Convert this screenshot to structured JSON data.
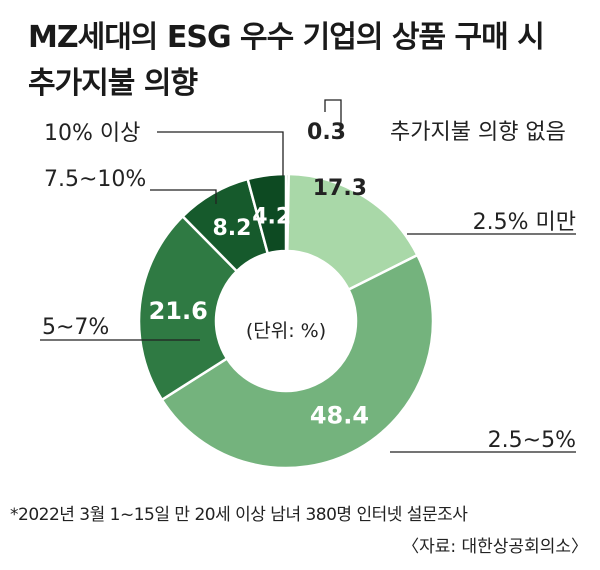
{
  "title_lines": [
    "MZ세대의 ESG 우수 기업의 상품 구매 시",
    "추가지불 의향"
  ],
  "unit_label": "(단위: %)",
  "note": "*2022년 3월 1~15일 만 20세 이상 남녀 380명 인터넷 설문조사",
  "source": "〈자료: 대한상공회의소〉",
  "chart_data": {
    "type": "pie",
    "donut": true,
    "unit": "%",
    "slices": [
      {
        "category": "추가지불 의향 없음",
        "value": 0.3,
        "color": "#1c3f25"
      },
      {
        "category": "2.5% 미만",
        "value": 17.3,
        "color": "#a9d8a8"
      },
      {
        "category": "2.5~5%",
        "value": 48.4,
        "color": "#74b37d"
      },
      {
        "category": "5~7%",
        "value": 21.6,
        "color": "#2f7a43"
      },
      {
        "category": "7.5~10%",
        "value": 8.2,
        "color": "#165a2c"
      },
      {
        "category": "10% 이상",
        "value": 4.2,
        "color": "#0d4a22"
      }
    ]
  }
}
